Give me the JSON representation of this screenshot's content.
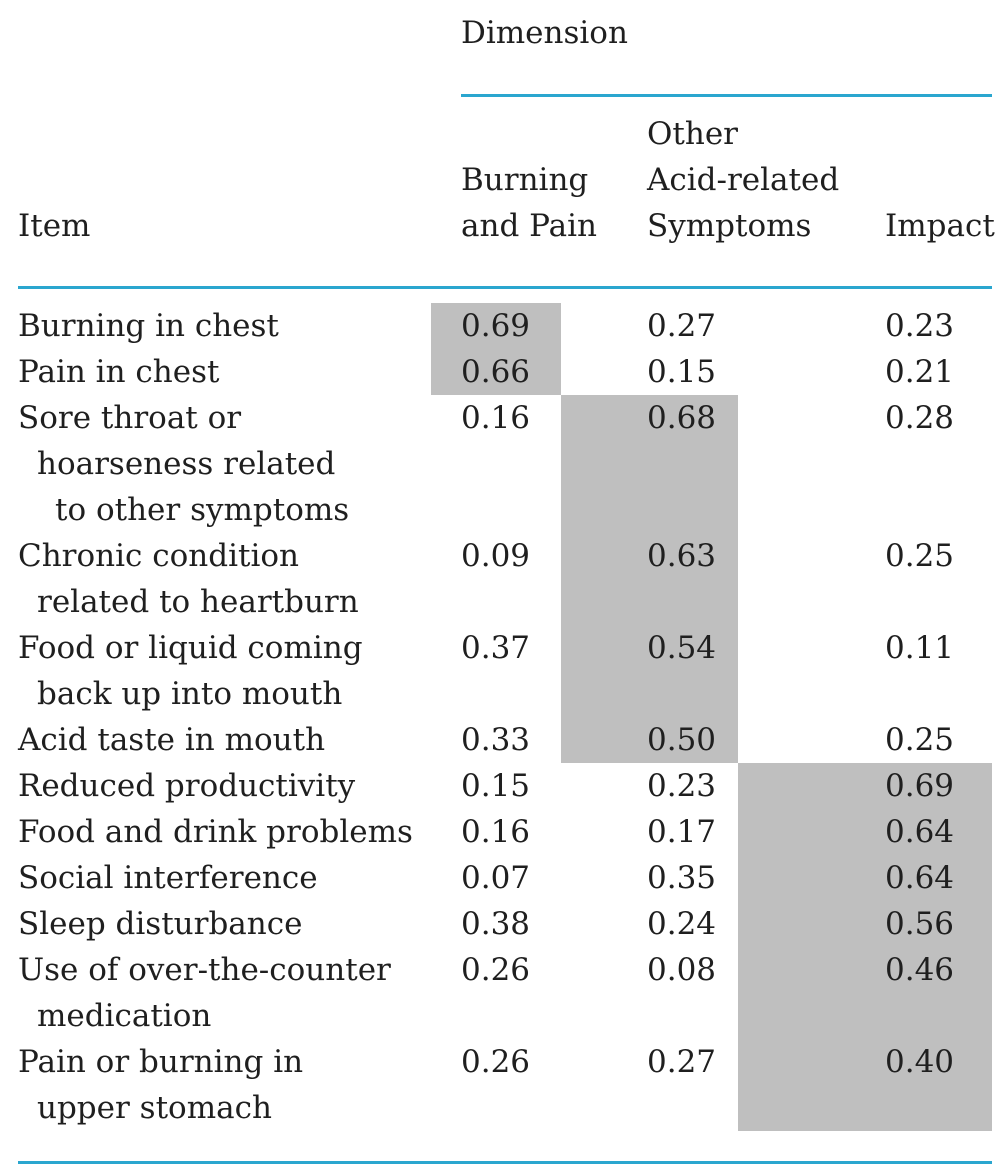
{
  "header": {
    "group_label": "Dimension",
    "item_label": "Item",
    "col_burning": [
      "Burning",
      "and Pain"
    ],
    "col_other": [
      "Other",
      "Acid-related",
      "Symptoms"
    ],
    "col_impact": "Impact"
  },
  "rows": [
    {
      "item": [
        "Burning in chest"
      ],
      "burning": "0.69",
      "other": "0.27",
      "impact": "0.23",
      "highlight": "burning"
    },
    {
      "item": [
        "Pain in chest"
      ],
      "burning": "0.66",
      "other": "0.15",
      "impact": "0.21",
      "highlight": "burning"
    },
    {
      "item": [
        "Sore throat or",
        "hoarseness related",
        "to other symptoms"
      ],
      "burning": "0.16",
      "other": "0.68",
      "impact": "0.28",
      "highlight": "other"
    },
    {
      "item": [
        "Chronic condition",
        "related to heartburn"
      ],
      "burning": "0.09",
      "other": "0.63",
      "impact": "0.25",
      "highlight": "other"
    },
    {
      "item": [
        "Food or liquid coming",
        "back up into mouth"
      ],
      "burning": "0.37",
      "other": "0.54",
      "impact": "0.11",
      "highlight": "other"
    },
    {
      "item": [
        "Acid taste in mouth"
      ],
      "burning": "0.33",
      "other": "0.50",
      "impact": "0.25",
      "highlight": "other"
    },
    {
      "item": [
        "Reduced productivity"
      ],
      "burning": "0.15",
      "other": "0.23",
      "impact": "0.69",
      "highlight": "impact"
    },
    {
      "item": [
        "Food and drink problems"
      ],
      "burning": "0.16",
      "other": "0.17",
      "impact": "0.64",
      "highlight": "impact"
    },
    {
      "item": [
        "Social interference"
      ],
      "burning": "0.07",
      "other": "0.35",
      "impact": "0.64",
      "highlight": "impact"
    },
    {
      "item": [
        "Sleep disturbance"
      ],
      "burning": "0.38",
      "other": "0.24",
      "impact": "0.56",
      "highlight": "impact"
    },
    {
      "item": [
        "Use of over-the-counter",
        "medication"
      ],
      "burning": "0.26",
      "other": "0.08",
      "impact": "0.46",
      "highlight": "impact"
    },
    {
      "item": [
        "Pain or burning in",
        "upper stomach"
      ],
      "burning": "0.26",
      "other": "0.27",
      "impact": "0.40",
      "highlight": "impact"
    }
  ],
  "colors": {
    "rule": "#2aa6cf",
    "highlight": "#bfbfbf",
    "text": "#1f1f1f"
  }
}
